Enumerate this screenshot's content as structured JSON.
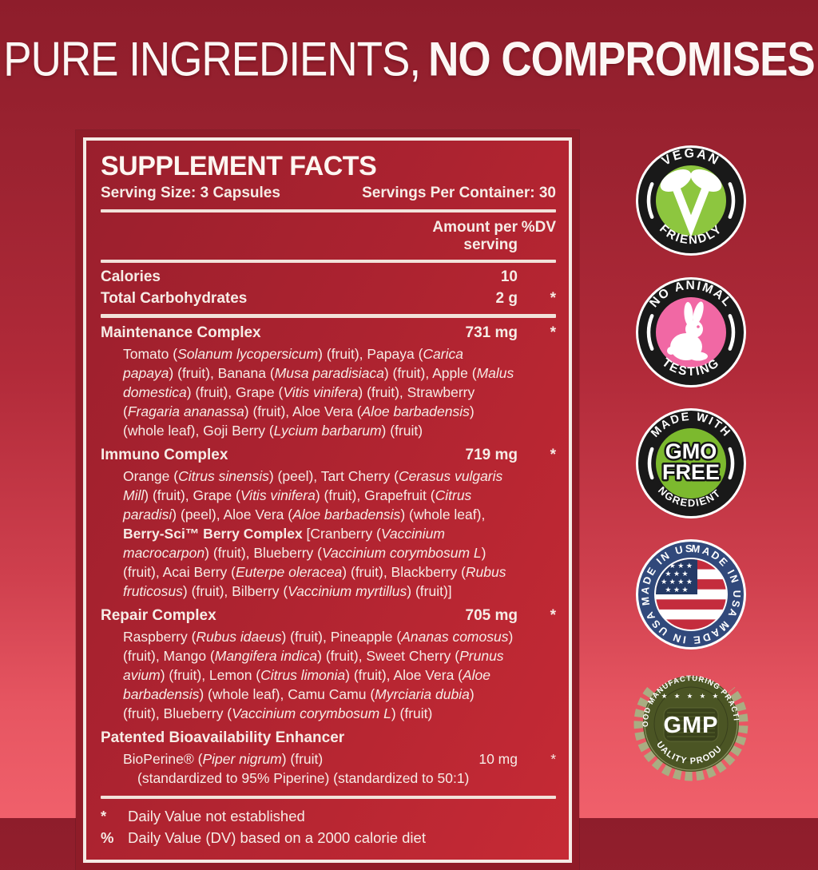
{
  "header": {
    "title_light": "PURE INGREDIENTS,",
    "title_bold": "NO COMPROMISES"
  },
  "panel": {
    "title": "SUPPLEMENT FACTS",
    "serving_size": "Serving Size: 3 Capsules",
    "servings_per_container": "Servings Per Container: 30",
    "col_amount": "Amount per serving",
    "col_dv": "%DV",
    "rows": [
      {
        "name": "Calories",
        "amount": "10",
        "dv": ""
      },
      {
        "name": "Total Carbohydrates",
        "amount": "2 g",
        "dv": "*"
      }
    ],
    "complexes": [
      {
        "name": "Maintenance Complex",
        "amount": "731 mg",
        "dv": "*",
        "desc": [
          {
            "t": "Tomato ("
          },
          {
            "t": "Solanum lycopersicum",
            "i": true
          },
          {
            "t": ") (fruit), Papaya ("
          },
          {
            "t": "Carica papaya",
            "i": true
          },
          {
            "t": ") (fruit), Banana ("
          },
          {
            "t": "Musa paradisiaca",
            "i": true
          },
          {
            "t": ") (fruit), Apple ("
          },
          {
            "t": "Malus domestica",
            "i": true
          },
          {
            "t": ") (fruit), Grape ("
          },
          {
            "t": "Vitis vinifera",
            "i": true
          },
          {
            "t": ") (fruit), Strawberry ("
          },
          {
            "t": "Fragaria ananassa",
            "i": true
          },
          {
            "t": ") (fruit), Aloe Vera ("
          },
          {
            "t": "Aloe barbadensis",
            "i": true
          },
          {
            "t": ") (whole leaf), Goji Berry ("
          },
          {
            "t": "Lycium barbarum",
            "i": true
          },
          {
            "t": ") (fruit)"
          }
        ]
      },
      {
        "name": "Immuno Complex",
        "amount": "719 mg",
        "dv": "*",
        "desc": [
          {
            "t": "Orange ("
          },
          {
            "t": "Citrus sinensis",
            "i": true
          },
          {
            "t": ") (peel), Tart Cherry ("
          },
          {
            "t": "Cerasus vulgaris Mill",
            "i": true
          },
          {
            "t": ") (fruit), Grape ("
          },
          {
            "t": "Vitis vinifera",
            "i": true
          },
          {
            "t": ") (fruit), Grapefruit ("
          },
          {
            "t": "Citrus paradisi",
            "i": true
          },
          {
            "t": ") (peel), Aloe Vera ("
          },
          {
            "t": "Aloe barbadensis",
            "i": true
          },
          {
            "t": ") (whole leaf), "
          },
          {
            "t": "Berry-Sci™ Berry Complex",
            "b": true
          },
          {
            "t": " [Cranberry ("
          },
          {
            "t": "Vaccinium macrocarpon",
            "i": true
          },
          {
            "t": ") (fruit), Blueberry ("
          },
          {
            "t": "Vaccinium corymbosum L",
            "i": true
          },
          {
            "t": ") (fruit), Acai Berry ("
          },
          {
            "t": "Euterpe oleracea",
            "i": true
          },
          {
            "t": ") (fruit), Blackberry ("
          },
          {
            "t": "Rubus fruticosus",
            "i": true
          },
          {
            "t": ") (fruit), Bilberry ("
          },
          {
            "t": "Vaccinium myrtillus",
            "i": true
          },
          {
            "t": ") (fruit)]"
          }
        ]
      },
      {
        "name": "Repair Complex",
        "amount": "705 mg",
        "dv": "*",
        "desc": [
          {
            "t": "Raspberry ("
          },
          {
            "t": "Rubus idaeus",
            "i": true
          },
          {
            "t": ") (fruit), Pineapple ("
          },
          {
            "t": "Ananas comosus",
            "i": true
          },
          {
            "t": ") (fruit), Mango ("
          },
          {
            "t": "Mangifera indica",
            "i": true
          },
          {
            "t": ") (fruit), Sweet Cherry ("
          },
          {
            "t": "Prunus avium",
            "i": true
          },
          {
            "t": ") (fruit), Lemon ("
          },
          {
            "t": "Citrus limonia",
            "i": true
          },
          {
            "t": ") (fruit), Aloe Vera ("
          },
          {
            "t": "Aloe barbadensis",
            "i": true
          },
          {
            "t": ") (whole leaf), Camu Camu ("
          },
          {
            "t": "Myrciaria dubia",
            "i": true
          },
          {
            "t": ") (fruit), Blueberry ("
          },
          {
            "t": "Vaccinium corymbosum L",
            "i": true
          },
          {
            "t": ") (fruit)"
          }
        ]
      },
      {
        "name": "Patented Bioavailability Enhancer",
        "amount": "",
        "dv": "",
        "desc": [
          {
            "t": "BioPerine® ("
          },
          {
            "t": "Piper nigrum",
            "i": true
          },
          {
            "t": ") (fruit)"
          }
        ],
        "amount2": "10 mg",
        "dv2": "*",
        "subnote": "(standardized to 95% Piperine) (standardized to 50:1)"
      }
    ],
    "footnotes": [
      {
        "symbol": "*",
        "text": "Daily Value not established"
      },
      {
        "symbol": "%",
        "text": "Daily Value (DV) based on a 2000 calorie diet"
      }
    ]
  },
  "badges": {
    "vegan": {
      "top": "VEGAN",
      "bottom": "FRIENDLY"
    },
    "no_animal": {
      "top": "NO ANIMAL",
      "bottom": "TESTING"
    },
    "gmo": {
      "top": "MADE WITH",
      "bottom": "INGREDIENTS",
      "line1": "GMO",
      "line2": "FREE"
    },
    "usa": {
      "ring_text": "MADE IN USA   MADE IN USA   MADE IN USA",
      "stars_row4": "★ ★ ★ ★",
      "stars_row3": "★ ★ ★"
    },
    "gmp": {
      "top": "GOOD MANUFACTURING PRACTICE",
      "bottom": "QUALITY PRODUCT",
      "center": "GMP",
      "stars": "★ ★ ★ ★ ★"
    }
  },
  "colors": {
    "badge_ring_black": "#191919",
    "vegan_green": "#8dc63f",
    "testing_pink": "#f168a4",
    "gmo_green": "#7cb92e",
    "usa_navy": "#31497b",
    "flag_red": "#c42c3d",
    "flag_canton": "#253a66",
    "gmp_olive": "#4b5524",
    "gmp_dark": "#39411b",
    "wreath": "#a9ad82"
  }
}
